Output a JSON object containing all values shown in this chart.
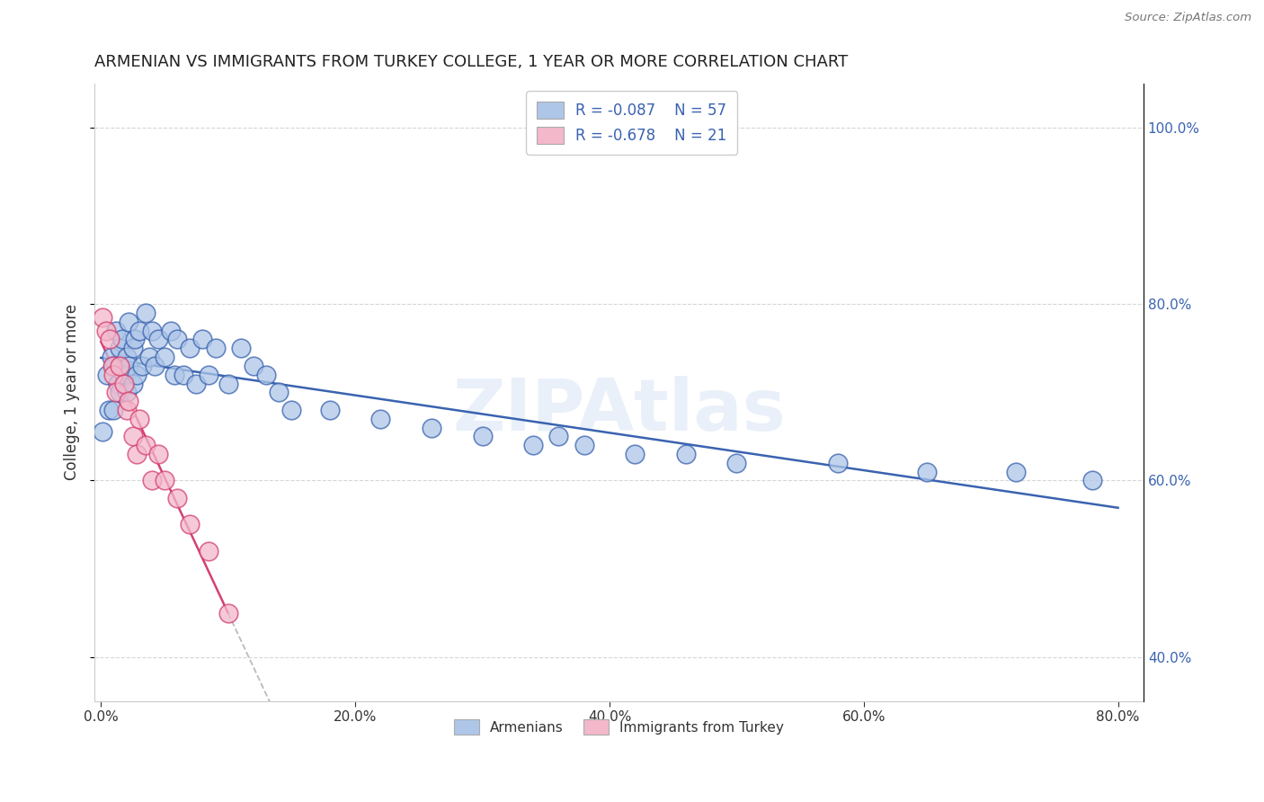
{
  "title": "ARMENIAN VS IMMIGRANTS FROM TURKEY COLLEGE, 1 YEAR OR MORE CORRELATION CHART",
  "source": "Source: ZipAtlas.com",
  "ylabel_label": "College, 1 year or more",
  "xlim": [
    -0.005,
    0.82
  ],
  "ylim": [
    0.35,
    1.05
  ],
  "watermark": "ZIPAtlas",
  "armenians_x": [
    0.001,
    0.005,
    0.006,
    0.008,
    0.01,
    0.01,
    0.012,
    0.013,
    0.015,
    0.015,
    0.017,
    0.018,
    0.02,
    0.02,
    0.022,
    0.022,
    0.025,
    0.025,
    0.027,
    0.028,
    0.03,
    0.032,
    0.035,
    0.038,
    0.04,
    0.042,
    0.045,
    0.05,
    0.055,
    0.058,
    0.06,
    0.065,
    0.07,
    0.075,
    0.08,
    0.085,
    0.09,
    0.1,
    0.11,
    0.12,
    0.13,
    0.14,
    0.15,
    0.18,
    0.22,
    0.26,
    0.3,
    0.34,
    0.38,
    0.42,
    0.46,
    0.5,
    0.58,
    0.65,
    0.72,
    0.78,
    0.36
  ],
  "armenians_y": [
    0.655,
    0.72,
    0.68,
    0.74,
    0.73,
    0.68,
    0.77,
    0.71,
    0.75,
    0.7,
    0.76,
    0.72,
    0.74,
    0.7,
    0.78,
    0.73,
    0.75,
    0.71,
    0.76,
    0.72,
    0.77,
    0.73,
    0.79,
    0.74,
    0.77,
    0.73,
    0.76,
    0.74,
    0.77,
    0.72,
    0.76,
    0.72,
    0.75,
    0.71,
    0.76,
    0.72,
    0.75,
    0.71,
    0.75,
    0.73,
    0.72,
    0.7,
    0.68,
    0.68,
    0.67,
    0.66,
    0.65,
    0.64,
    0.64,
    0.63,
    0.63,
    0.62,
    0.62,
    0.61,
    0.61,
    0.6,
    0.65
  ],
  "turkey_x": [
    0.001,
    0.004,
    0.007,
    0.009,
    0.01,
    0.012,
    0.015,
    0.018,
    0.02,
    0.022,
    0.025,
    0.028,
    0.03,
    0.035,
    0.04,
    0.045,
    0.05,
    0.06,
    0.07,
    0.085,
    0.1
  ],
  "turkey_y": [
    0.785,
    0.77,
    0.76,
    0.73,
    0.72,
    0.7,
    0.73,
    0.71,
    0.68,
    0.69,
    0.65,
    0.63,
    0.67,
    0.64,
    0.6,
    0.63,
    0.6,
    0.58,
    0.55,
    0.52,
    0.45
  ],
  "R_armenians": -0.087,
  "N_armenians": 57,
  "R_turkey": -0.678,
  "N_turkey": 21,
  "color_armenians": "#aec6e8",
  "color_turkey": "#f4b8cb",
  "line_color_armenians": "#3a63b0",
  "line_color_turkey": "#d44070",
  "legend_box_color_armenians": "#aec6e8",
  "legend_box_color_turkey": "#f4b8cb",
  "background_color": "#ffffff",
  "grid_color": "#cccccc",
  "title_color": "#2e5090",
  "source_color": "#777777"
}
